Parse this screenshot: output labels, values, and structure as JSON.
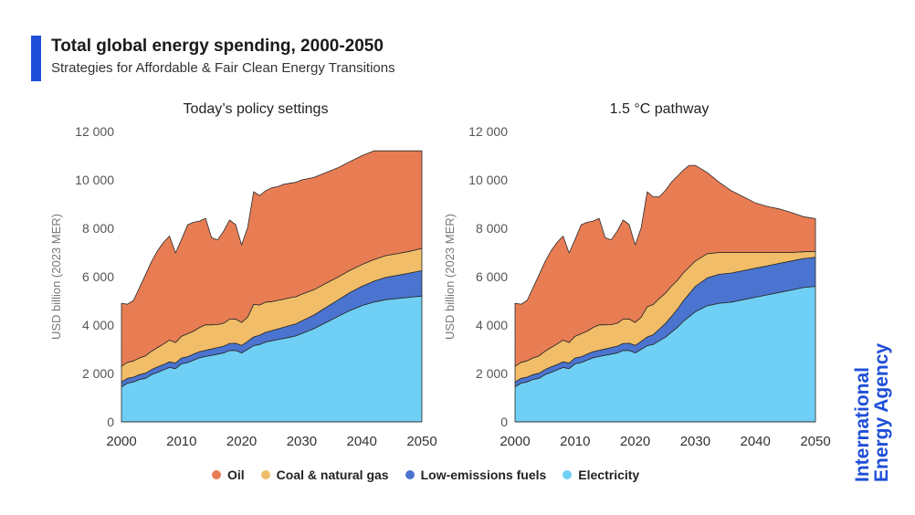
{
  "header": {
    "title": "Total global energy spending, 2000-2050",
    "subtitle": "Strategies for Affordable & Fair Clean Energy Transitions"
  },
  "legend": [
    {
      "label": "Oil",
      "color": "#e87d54"
    },
    {
      "label": "Coal & natural gas",
      "color": "#f1bd68"
    },
    {
      "label": "Low-emissions fuels",
      "color": "#4a74cf"
    },
    {
      "label": "Electricity",
      "color": "#6fcff4"
    }
  ],
  "brand": {
    "line1": "International",
    "line2": "Energy Agency"
  },
  "chart_data": [
    {
      "type": "area",
      "stacked": true,
      "title": "Today’s policy settings",
      "ylabel": "USD billion (2023 MER)",
      "ylim": [
        0,
        12000
      ],
      "yticks": [
        "0",
        "2 000",
        "4 000",
        "6 000",
        "8 000",
        "10 000",
        "12 000"
      ],
      "xticks": [
        "2000",
        "2010",
        "2020",
        "2030",
        "2040",
        "2050"
      ],
      "x": [
        2000,
        2001,
        2002,
        2003,
        2004,
        2005,
        2006,
        2007,
        2008,
        2009,
        2010,
        2011,
        2012,
        2013,
        2014,
        2015,
        2016,
        2017,
        2018,
        2019,
        2020,
        2021,
        2022,
        2023,
        2024,
        2025,
        2026,
        2027,
        2028,
        2029,
        2030,
        2032,
        2034,
        2036,
        2038,
        2040,
        2042,
        2044,
        2046,
        2048,
        2050
      ],
      "series": [
        {
          "name": "Electricity",
          "values": [
            1450,
            1600,
            1650,
            1750,
            1800,
            1950,
            2050,
            2150,
            2250,
            2200,
            2400,
            2450,
            2550,
            2650,
            2700,
            2750,
            2800,
            2850,
            2950,
            2950,
            2850,
            3000,
            3150,
            3200,
            3300,
            3350,
            3400,
            3450,
            3500,
            3550,
            3650,
            3850,
            4100,
            4350,
            4600,
            4800,
            4950,
            5050,
            5100,
            5150,
            5200
          ]
        },
        {
          "name": "Low-emissions fuels",
          "values": [
            200,
            200,
            200,
            200,
            210,
            210,
            220,
            220,
            230,
            230,
            240,
            240,
            250,
            250,
            260,
            260,
            270,
            280,
            290,
            300,
            310,
            330,
            360,
            380,
            400,
            420,
            440,
            460,
            480,
            500,
            520,
            560,
            620,
            680,
            740,
            800,
            860,
            920,
            960,
            1000,
            1050
          ]
        },
        {
          "name": "Coal & natural gas",
          "values": [
            650,
            660,
            670,
            690,
            720,
            760,
            800,
            850,
            900,
            850,
            900,
            950,
            950,
            1000,
            1050,
            1000,
            950,
            950,
            1000,
            1000,
            950,
            1000,
            1350,
            1250,
            1250,
            1200,
            1180,
            1160,
            1150,
            1120,
            1100,
            1050,
            1000,
            950,
            920,
            900,
            900,
            900,
            900,
            900,
            920
          ]
        },
        {
          "name": "Oil",
          "values": [
            2600,
            2400,
            2500,
            2900,
            3350,
            3700,
            4000,
            4200,
            4300,
            3700,
            4000,
            4500,
            4500,
            4400,
            4400,
            3600,
            3500,
            3800,
            4100,
            3900,
            3200,
            3700,
            4650,
            4520,
            4600,
            4700,
            4700,
            4750,
            4730,
            4730,
            4730,
            4640,
            4580,
            4520,
            4490,
            4500,
            4490,
            4330,
            4240,
            4150,
            4030
          ]
        }
      ]
    },
    {
      "type": "area",
      "stacked": true,
      "title": "1.5 °C pathway",
      "ylabel": "USD billion (2023 MER)",
      "ylim": [
        0,
        12000
      ],
      "yticks": [
        "0",
        "2 000",
        "4 000",
        "6 000",
        "8 000",
        "10 000",
        "12 000"
      ],
      "xticks": [
        "2000",
        "2010",
        "2020",
        "2030",
        "2040",
        "2050"
      ],
      "x": [
        2000,
        2001,
        2002,
        2003,
        2004,
        2005,
        2006,
        2007,
        2008,
        2009,
        2010,
        2011,
        2012,
        2013,
        2014,
        2015,
        2016,
        2017,
        2018,
        2019,
        2020,
        2021,
        2022,
        2023,
        2024,
        2025,
        2026,
        2027,
        2028,
        2029,
        2030,
        2032,
        2034,
        2036,
        2038,
        2040,
        2042,
        2044,
        2046,
        2048,
        2050
      ],
      "series": [
        {
          "name": "Electricity",
          "values": [
            1450,
            1600,
            1650,
            1750,
            1800,
            1950,
            2050,
            2150,
            2250,
            2200,
            2400,
            2450,
            2550,
            2650,
            2700,
            2750,
            2800,
            2850,
            2950,
            2950,
            2850,
            3000,
            3150,
            3200,
            3350,
            3500,
            3700,
            3900,
            4150,
            4350,
            4550,
            4800,
            4900,
            4950,
            5050,
            5150,
            5250,
            5350,
            5450,
            5550,
            5600
          ]
        },
        {
          "name": "Low-emissions fuels",
          "values": [
            200,
            200,
            200,
            200,
            210,
            210,
            220,
            220,
            230,
            230,
            240,
            240,
            250,
            250,
            260,
            260,
            270,
            280,
            290,
            300,
            310,
            330,
            360,
            400,
            480,
            560,
            650,
            750,
            850,
            950,
            1050,
            1150,
            1200,
            1200,
            1200,
            1200,
            1200,
            1200,
            1200,
            1200,
            1200
          ]
        },
        {
          "name": "Coal & natural gas",
          "values": [
            650,
            660,
            670,
            690,
            720,
            760,
            800,
            850,
            900,
            850,
            900,
            950,
            950,
            1000,
            1050,
            1000,
            950,
            950,
            1000,
            1000,
            950,
            1000,
            1250,
            1250,
            1270,
            1250,
            1250,
            1200,
            1150,
            1100,
            1050,
            1000,
            900,
            850,
            750,
            650,
            550,
            450,
            350,
            280,
            250
          ]
        },
        {
          "name": "Oil",
          "values": [
            2600,
            2400,
            2500,
            2900,
            3350,
            3700,
            4000,
            4200,
            4300,
            3700,
            4000,
            4500,
            4500,
            4400,
            4400,
            3600,
            3500,
            3800,
            4100,
            3900,
            3200,
            3700,
            4750,
            4450,
            4200,
            4240,
            4300,
            4300,
            4250,
            4200,
            3950,
            3350,
            2900,
            2550,
            2300,
            2050,
            1900,
            1800,
            1650,
            1450,
            1350
          ]
        }
      ]
    }
  ]
}
